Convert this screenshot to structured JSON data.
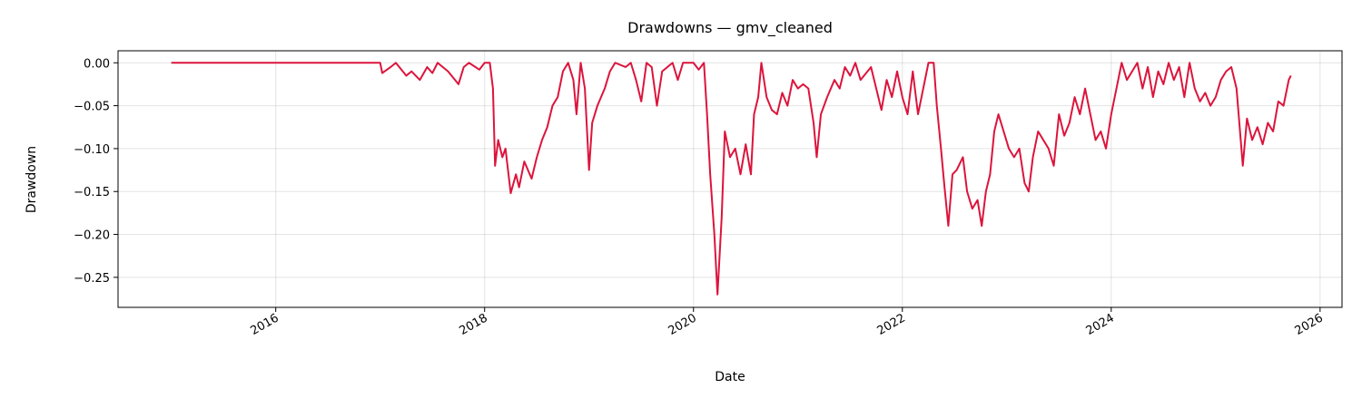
{
  "chart_data": {
    "type": "line",
    "title": "Drawdowns — gmv_cleaned",
    "xlabel": "Date",
    "ylabel": "Drawdown",
    "x": [
      2015.0,
      2017.0,
      2017.02,
      2017.1,
      2017.15,
      2017.25,
      2017.3,
      2017.38,
      2017.45,
      2017.5,
      2017.55,
      2017.65,
      2017.75,
      2017.8,
      2017.85,
      2017.95,
      2018.0,
      2018.05,
      2018.08,
      2018.1,
      2018.13,
      2018.17,
      2018.2,
      2018.25,
      2018.3,
      2018.33,
      2018.38,
      2018.45,
      2018.5,
      2018.55,
      2018.6,
      2018.65,
      2018.7,
      2018.75,
      2018.8,
      2018.85,
      2018.88,
      2018.92,
      2018.96,
      2019.0,
      2019.03,
      2019.08,
      2019.15,
      2019.2,
      2019.25,
      2019.35,
      2019.4,
      2019.45,
      2019.5,
      2019.55,
      2019.6,
      2019.65,
      2019.7,
      2019.8,
      2019.85,
      2019.9,
      2020.0,
      2020.05,
      2020.1,
      2020.13,
      2020.16,
      2020.2,
      2020.23,
      2020.27,
      2020.3,
      2020.35,
      2020.4,
      2020.45,
      2020.5,
      2020.55,
      2020.58,
      2020.62,
      2020.65,
      2020.7,
      2020.75,
      2020.8,
      2020.85,
      2020.9,
      2020.95,
      2021.0,
      2021.05,
      2021.1,
      2021.15,
      2021.18,
      2021.22,
      2021.28,
      2021.35,
      2021.4,
      2021.45,
      2021.5,
      2021.55,
      2021.6,
      2021.7,
      2021.75,
      2021.8,
      2021.85,
      2021.9,
      2021.95,
      2022.0,
      2022.05,
      2022.1,
      2022.15,
      2022.2,
      2022.25,
      2022.3,
      2022.33,
      2022.37,
      2022.4,
      2022.44,
      2022.48,
      2022.52,
      2022.58,
      2022.62,
      2022.67,
      2022.72,
      2022.76,
      2022.8,
      2022.84,
      2022.88,
      2022.92,
      2022.97,
      2023.02,
      2023.07,
      2023.12,
      2023.17,
      2023.21,
      2023.25,
      2023.3,
      2023.35,
      2023.4,
      2023.45,
      2023.5,
      2023.55,
      2023.6,
      2023.65,
      2023.7,
      2023.75,
      2023.8,
      2023.85,
      2023.9,
      2023.95,
      2024.0,
      2024.05,
      2024.1,
      2024.15,
      2024.2,
      2024.25,
      2024.3,
      2024.35,
      2024.4,
      2024.45,
      2024.5,
      2024.55,
      2024.6,
      2024.65,
      2024.7,
      2024.75,
      2024.8,
      2024.85,
      2024.9,
      2024.95,
      2025.0,
      2025.05,
      2025.1,
      2025.15,
      2025.2,
      2025.22,
      2025.26,
      2025.3,
      2025.35,
      2025.4,
      2025.45,
      2025.5,
      2025.55,
      2025.6,
      2025.65,
      2025.7,
      2025.72
    ],
    "values": [
      0,
      0,
      -0.012,
      -0.005,
      0,
      -0.015,
      -0.01,
      -0.02,
      -0.005,
      -0.012,
      0,
      -0.01,
      -0.025,
      -0.005,
      0,
      -0.008,
      0,
      0,
      -0.03,
      -0.12,
      -0.09,
      -0.11,
      -0.1,
      -0.152,
      -0.13,
      -0.145,
      -0.115,
      -0.135,
      -0.11,
      -0.09,
      -0.075,
      -0.05,
      -0.04,
      -0.01,
      0,
      -0.02,
      -0.06,
      0,
      -0.03,
      -0.125,
      -0.07,
      -0.05,
      -0.03,
      -0.01,
      0,
      -0.005,
      0,
      -0.02,
      -0.045,
      0,
      -0.005,
      -0.05,
      -0.01,
      0,
      -0.02,
      0,
      0,
      -0.008,
      0,
      -0.06,
      -0.13,
      -0.2,
      -0.27,
      -0.18,
      -0.08,
      -0.11,
      -0.1,
      -0.13,
      -0.095,
      -0.13,
      -0.06,
      -0.04,
      0,
      -0.04,
      -0.055,
      -0.06,
      -0.035,
      -0.05,
      -0.02,
      -0.03,
      -0.025,
      -0.03,
      -0.07,
      -0.11,
      -0.06,
      -0.04,
      -0.02,
      -0.03,
      -0.005,
      -0.015,
      0,
      -0.02,
      -0.005,
      -0.03,
      -0.055,
      -0.02,
      -0.04,
      -0.01,
      -0.04,
      -0.06,
      -0.01,
      -0.06,
      -0.03,
      0,
      0,
      -0.05,
      -0.1,
      -0.14,
      -0.19,
      -0.13,
      -0.125,
      -0.11,
      -0.15,
      -0.17,
      -0.16,
      -0.19,
      -0.15,
      -0.13,
      -0.08,
      -0.06,
      -0.08,
      -0.1,
      -0.11,
      -0.1,
      -0.14,
      -0.15,
      -0.11,
      -0.08,
      -0.09,
      -0.1,
      -0.12,
      -0.06,
      -0.085,
      -0.07,
      -0.04,
      -0.06,
      -0.03,
      -0.06,
      -0.09,
      -0.08,
      -0.1,
      -0.06,
      -0.03,
      0,
      -0.02,
      -0.01,
      0,
      -0.03,
      -0.005,
      -0.04,
      -0.01,
      -0.025,
      0,
      -0.02,
      -0.005,
      -0.04,
      0,
      -0.03,
      -0.045,
      -0.035,
      -0.05,
      -0.04,
      -0.02,
      -0.01,
      -0.005,
      -0.03,
      -0.06,
      -0.12,
      -0.065,
      -0.09,
      -0.075,
      -0.095,
      -0.07,
      -0.08,
      -0.045,
      -0.05,
      -0.02,
      -0.015
    ],
    "color": "#dc143c",
    "xlim": [
      2014.49,
      2026.21
    ],
    "xticks": [
      2016,
      2018,
      2020,
      2022,
      2024,
      2026
    ],
    "ylim": [
      -0.285,
      0.014
    ],
    "yticks": [
      {
        "value": 0,
        "label": "0.00"
      },
      {
        "value": -0.05,
        "label": "−0.05"
      },
      {
        "value": -0.1,
        "label": "−0.10"
      },
      {
        "value": -0.15,
        "label": "−0.15"
      },
      {
        "value": -0.2,
        "label": "−0.20"
      },
      {
        "value": -0.25,
        "label": "−0.25"
      }
    ],
    "grid": true
  }
}
